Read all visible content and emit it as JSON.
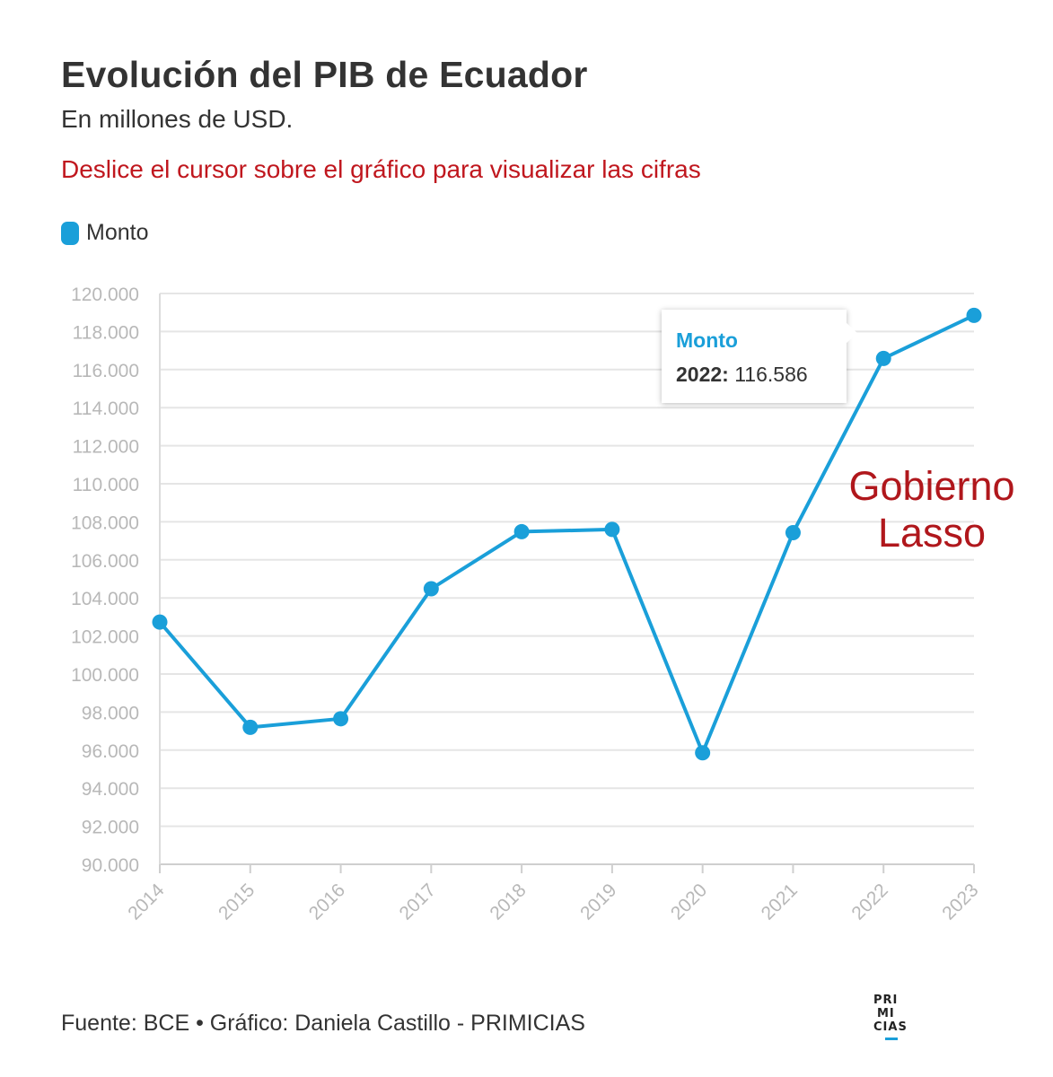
{
  "header": {
    "title": "Evolución del PIB de Ecuador",
    "subtitle": "En millones de USD.",
    "instruction": "Deslice el cursor sobre el gráfico para visualizar las cifras"
  },
  "legend": {
    "label": "Monto"
  },
  "colors": {
    "series": "#1a9fd9",
    "annotation": "#b0171c",
    "instruction": "#c0171e",
    "grid": "#e5e5e5",
    "tick": "#b8b8b8"
  },
  "tooltip": {
    "series": "Monto",
    "year": "2022:",
    "value": "116.586"
  },
  "annotation": {
    "line1": "Gobierno",
    "line2": "Lasso"
  },
  "footer": {
    "source": "Fuente: BCE • Gráfico: Daniela Castillo - PRIMICIAS"
  },
  "logo": {
    "line1": "PRI",
    "line2": "MI",
    "line3": "CIAS"
  },
  "chart_data": {
    "type": "line",
    "title": "Evolución del PIB de Ecuador",
    "subtitle": "En millones de USD.",
    "xlabel": "",
    "ylabel": "",
    "categories": [
      "2014",
      "2015",
      "2016",
      "2017",
      "2018",
      "2019",
      "2020",
      "2021",
      "2022",
      "2023"
    ],
    "series": [
      {
        "name": "Monto",
        "values": [
          102730,
          97200,
          97650,
          104480,
          107480,
          107600,
          95860,
          107430,
          116586,
          118850
        ]
      }
    ],
    "ylim": [
      90000,
      120000
    ],
    "yticks": [
      90000,
      92000,
      94000,
      96000,
      98000,
      100000,
      102000,
      104000,
      106000,
      108000,
      110000,
      112000,
      114000,
      116000,
      118000,
      120000
    ],
    "ytick_labels": [
      "90.000",
      "92.000",
      "94.000",
      "96.000",
      "98.000",
      "100.000",
      "102.000",
      "104.000",
      "106.000",
      "108.000",
      "110.000",
      "112.000",
      "114.000",
      "116.000",
      "118.000",
      "120.000"
    ],
    "grid": true,
    "legend_position": "top-left"
  }
}
